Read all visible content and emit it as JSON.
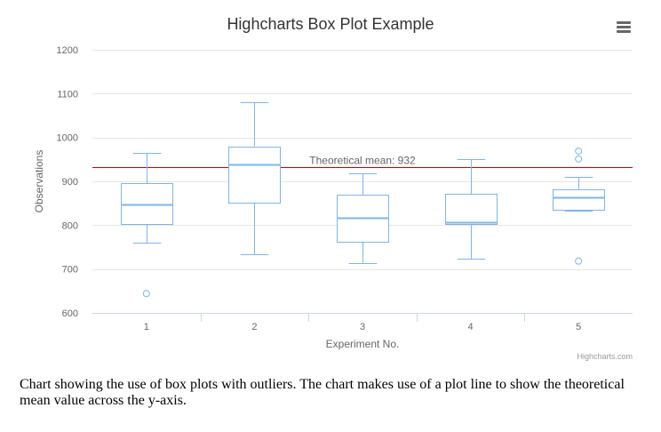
{
  "chart_data": {
    "type": "boxplot",
    "title": "Highcharts Box Plot Example",
    "xlabel": "Experiment No.",
    "ylabel": "Observations",
    "categories": [
      "1",
      "2",
      "3",
      "4",
      "5"
    ],
    "ylim": [
      600,
      1200
    ],
    "yticks": [
      600,
      700,
      800,
      900,
      1000,
      1100,
      1200
    ],
    "grid": true,
    "legend": "none",
    "boxes": [
      {
        "category": "1",
        "low": 760,
        "q1": 801,
        "median": 848,
        "q3": 895,
        "high": 965
      },
      {
        "category": "2",
        "low": 733,
        "q1": 853,
        "median": 939,
        "q3": 980,
        "high": 1080
      },
      {
        "category": "3",
        "low": 714,
        "q1": 762,
        "median": 817,
        "q3": 870,
        "high": 918
      },
      {
        "category": "4",
        "low": 724,
        "q1": 802,
        "median": 806,
        "q3": 871,
        "high": 950
      },
      {
        "category": "5",
        "low": 834,
        "q1": 836,
        "median": 864,
        "q3": 882,
        "high": 910
      }
    ],
    "outliers": [
      {
        "category": "1",
        "value": 644
      },
      {
        "category": "5",
        "value": 718
      },
      {
        "category": "5",
        "value": 951
      },
      {
        "category": "5",
        "value": 969
      }
    ],
    "plot_line": {
      "value": 932,
      "label": "Theoretical mean: 932",
      "color": "#cc0000"
    },
    "colors": {
      "box": "#7cb5ec",
      "grid": "#e6e6e6",
      "axis": "#ccd6eb",
      "title": "#333333",
      "label": "#666666"
    }
  },
  "credits": "Highcharts.com",
  "menu_icon": "hamburger-menu-icon",
  "caption": "Chart showing the use of box plots with outliers. The chart makes use of a plot line to show the theoretical mean value across the y-axis."
}
